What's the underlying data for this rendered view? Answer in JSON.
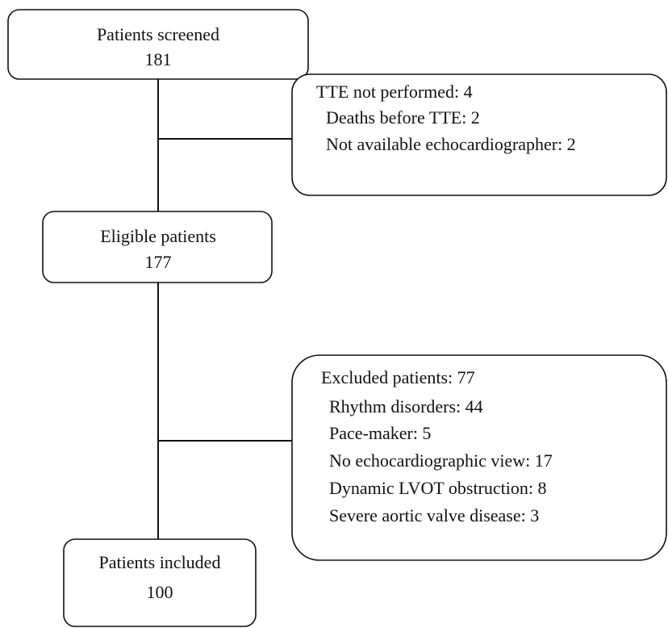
{
  "nodes": [
    {
      "label": "Patients screened",
      "count": "181"
    },
    {
      "label": "Eligible patients",
      "count": "177"
    },
    {
      "label": "Patients included",
      "count": "100"
    }
  ],
  "exclusions": [
    {
      "title": "TTE not performed: 4",
      "items": [
        "Deaths before TTE: 2",
        "Not available echocardiographer: 2"
      ]
    },
    {
      "title": "Excluded patients: 77",
      "items": [
        "Rhythm disorders: 44",
        "Pace-maker: 5",
        "No echocardiographic view: 17",
        "Dynamic LVOT obstruction: 8",
        "Severe aortic valve disease: 3"
      ]
    }
  ]
}
